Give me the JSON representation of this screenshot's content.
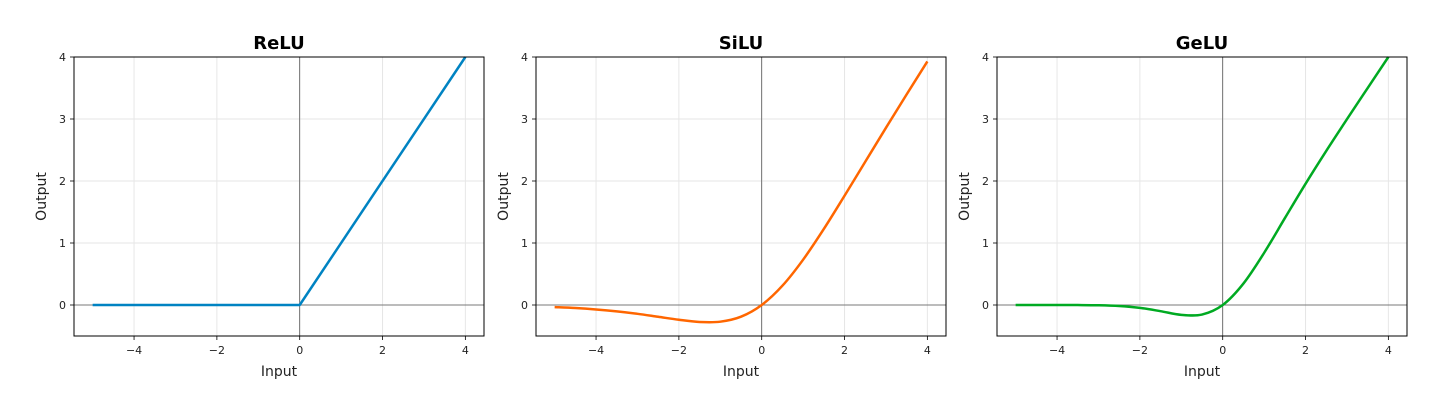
{
  "chart_data": [
    {
      "type": "line",
      "title": "ReLU",
      "xlabel": "Input",
      "ylabel": "Output",
      "xlim": [
        -5.45,
        4.45
      ],
      "ylim": [
        -0.5,
        4
      ],
      "xticks": [
        -4,
        -2,
        0,
        2,
        4
      ],
      "yticks": [
        0,
        1,
        2,
        3,
        4
      ],
      "xtick_labels": [
        "−4",
        "−2",
        "0",
        "2",
        "4"
      ],
      "ytick_labels": [
        "0",
        "1",
        "2",
        "3",
        "4"
      ],
      "grid": true,
      "zero_lines": true,
      "color": "#0083c2",
      "series": [
        {
          "x": [
            -5,
            0,
            4
          ],
          "y": [
            0,
            0,
            4
          ]
        }
      ]
    },
    {
      "type": "line",
      "title": "SiLU",
      "xlabel": "Input",
      "ylabel": "Output",
      "xlim": [
        -5.45,
        4.45
      ],
      "ylim": [
        -0.5,
        4
      ],
      "xticks": [
        -4,
        -2,
        0,
        2,
        4
      ],
      "yticks": [
        0,
        1,
        2,
        3,
        4
      ],
      "xtick_labels": [
        "−4",
        "−2",
        "0",
        "2",
        "4"
      ],
      "ytick_labels": [
        "0",
        "1",
        "2",
        "3",
        "4"
      ],
      "grid": true,
      "zero_lines": true,
      "color": "#ff6600",
      "series": [
        {
          "x": [
            -5,
            -4.5,
            -4,
            -3.5,
            -3,
            -2.5,
            -2,
            -1.5,
            -1,
            -0.5,
            0,
            0.5,
            1,
            1.5,
            2,
            2.5,
            3,
            3.5,
            4
          ],
          "y": [
            -0.034,
            -0.049,
            -0.072,
            -0.103,
            -0.142,
            -0.19,
            -0.238,
            -0.274,
            -0.269,
            -0.189,
            0,
            0.311,
            0.731,
            1.226,
            1.762,
            2.31,
            2.858,
            3.397,
            3.928
          ]
        }
      ]
    },
    {
      "type": "line",
      "title": "GeLU",
      "xlabel": "Input",
      "ylabel": "Output",
      "xlim": [
        -5.45,
        4.45
      ],
      "ylim": [
        -0.5,
        4
      ],
      "xticks": [
        -4,
        -2,
        0,
        2,
        4
      ],
      "yticks": [
        0,
        1,
        2,
        3,
        4
      ],
      "xtick_labels": [
        "−4",
        "−2",
        "0",
        "2",
        "4"
      ],
      "ytick_labels": [
        "0",
        "1",
        "2",
        "3",
        "4"
      ],
      "grid": true,
      "zero_lines": true,
      "color": "#00aa22",
      "series": [
        {
          "x": [
            -5,
            -4.5,
            -4,
            -3.5,
            -3,
            -2.5,
            -2,
            -1.5,
            -1,
            -0.5,
            0,
            0.5,
            1,
            1.5,
            2,
            2.5,
            3,
            3.5,
            4
          ],
          "y": [
            0,
            0,
            -0.0001,
            -0.0008,
            -0.004,
            -0.016,
            -0.046,
            -0.1,
            -0.159,
            -0.154,
            0,
            0.346,
            0.841,
            1.4,
            1.955,
            2.485,
            2.996,
            3.499,
            4.0
          ]
        }
      ]
    }
  ]
}
